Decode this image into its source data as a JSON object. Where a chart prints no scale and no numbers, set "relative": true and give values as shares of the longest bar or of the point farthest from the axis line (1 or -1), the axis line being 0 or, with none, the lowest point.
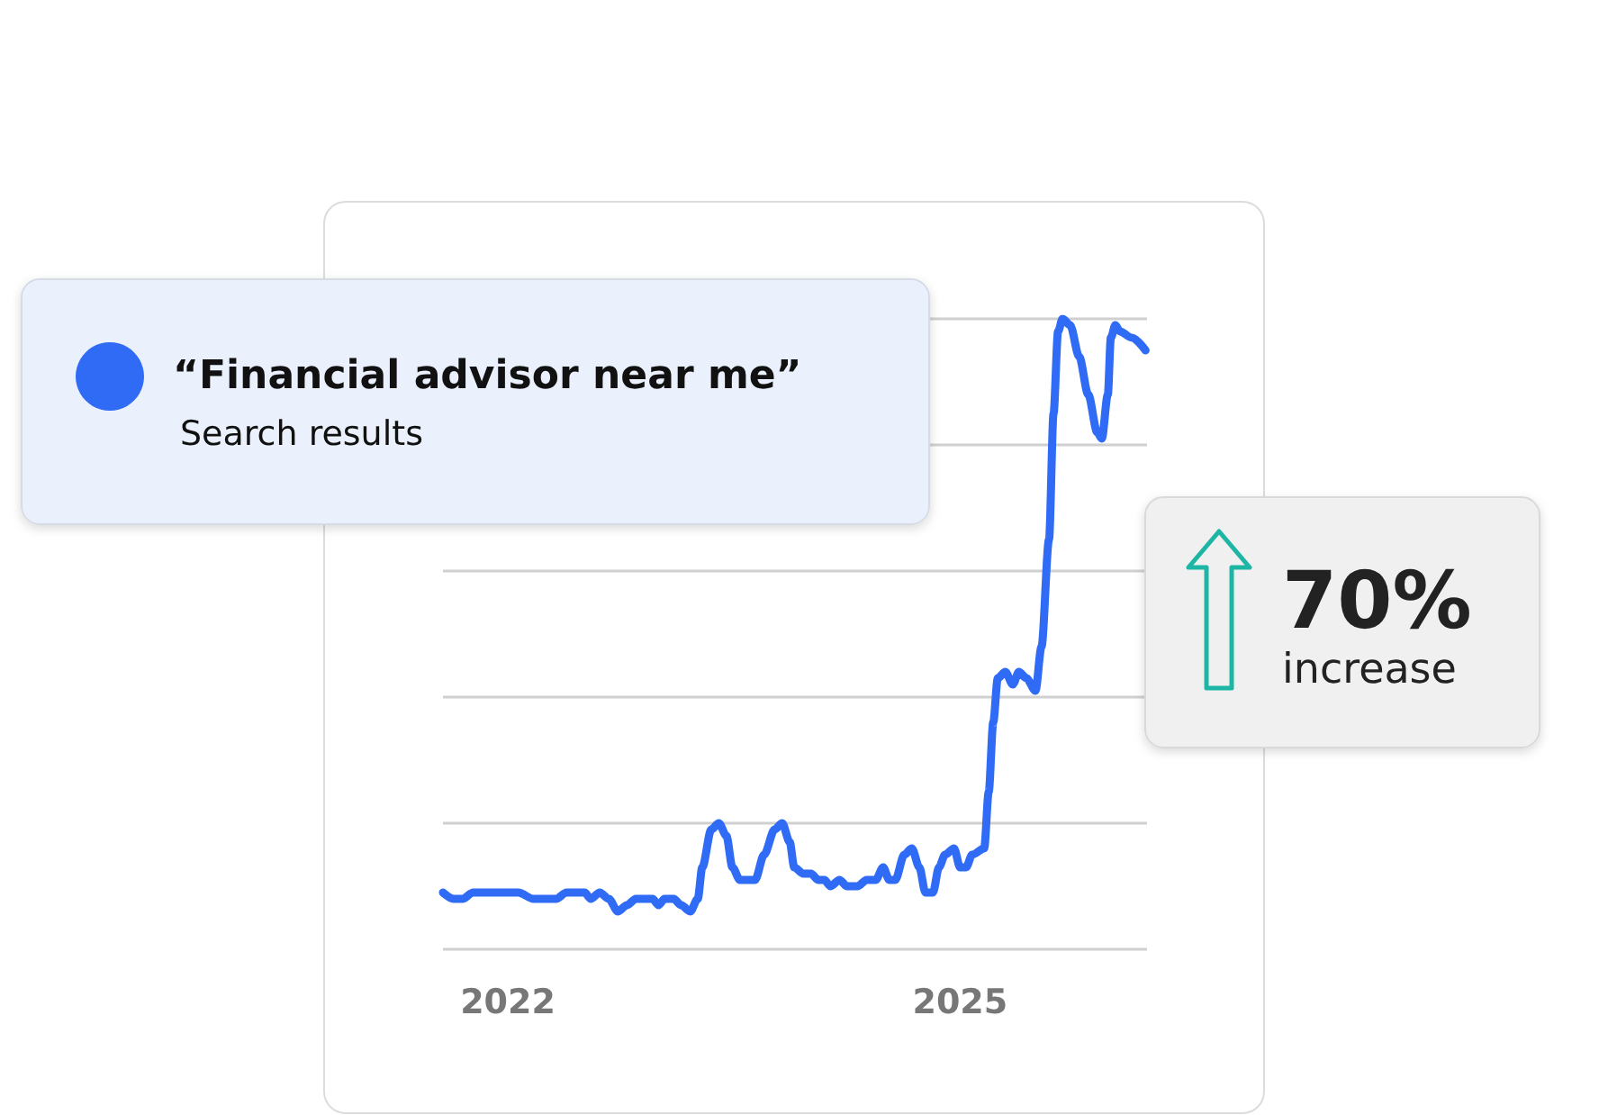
{
  "chart_data": {
    "type": "line",
    "relative": true,
    "legend": "top left",
    "grid": "y",
    "marker": "none",
    "line_style": "solid",
    "xlim": [
      2021.57,
      2026.24
    ],
    "xticks": [
      2022,
      2025
    ],
    "annotations": [
      "Search results",
      "70%",
      "increase"
    ],
    "series": [
      {
        "name": "“Financial advisor near me”",
        "color": "#2f6bf5",
        "x": [
          2021.57,
          2021.64,
          2021.7,
          2021.77,
          2021.88,
          2021.98,
          2022.07,
          2022.17,
          2022.25,
          2022.32,
          2022.39,
          2022.45,
          2022.51,
          2022.55,
          2022.61,
          2022.67,
          2022.73,
          2022.79,
          2022.85,
          2022.91,
          2022.96,
          2023.0,
          2023.04,
          2023.1,
          2023.15,
          2023.21,
          2023.26,
          2023.29,
          2023.35,
          2023.4,
          2023.45,
          2023.49,
          2023.54,
          2023.59,
          2023.64,
          2023.7,
          2023.77,
          2023.82,
          2023.87,
          2023.9,
          2023.96,
          2024.01,
          2024.06,
          2024.1,
          2024.14,
          2024.2,
          2024.25,
          2024.32,
          2024.38,
          2024.44,
          2024.49,
          2024.53,
          2024.57,
          2024.63,
          2024.68,
          2024.73,
          2024.77,
          2024.82,
          2024.86,
          2024.9,
          2024.96,
          2025.0,
          2025.04,
          2025.08,
          2025.16,
          2025.19,
          2025.22,
          2025.25,
          2025.3,
          2025.35,
          2025.39,
          2025.44,
          2025.5,
          2025.54,
          2025.59,
          2025.62,
          2025.65,
          2025.68,
          2025.73,
          2025.79,
          2025.85,
          2025.91,
          2025.94,
          2025.98,
          2026.0,
          2026.03,
          2026.06,
          2026.14,
          2026.23
        ],
        "values": [
          0.09,
          0.08,
          0.08,
          0.09,
          0.09,
          0.09,
          0.09,
          0.08,
          0.08,
          0.08,
          0.09,
          0.09,
          0.09,
          0.08,
          0.09,
          0.08,
          0.06,
          0.07,
          0.08,
          0.08,
          0.08,
          0.07,
          0.08,
          0.08,
          0.07,
          0.06,
          0.08,
          0.13,
          0.19,
          0.2,
          0.18,
          0.13,
          0.11,
          0.11,
          0.11,
          0.15,
          0.19,
          0.2,
          0.17,
          0.13,
          0.12,
          0.12,
          0.11,
          0.11,
          0.1,
          0.11,
          0.1,
          0.1,
          0.11,
          0.11,
          0.13,
          0.11,
          0.11,
          0.15,
          0.16,
          0.13,
          0.09,
          0.09,
          0.13,
          0.15,
          0.16,
          0.13,
          0.13,
          0.15,
          0.16,
          0.25,
          0.36,
          0.43,
          0.44,
          0.42,
          0.44,
          0.43,
          0.41,
          0.48,
          0.65,
          0.85,
          0.98,
          1,
          0.99,
          0.94,
          0.88,
          0.82,
          0.81,
          0.88,
          0.97,
          0.99,
          0.98,
          0.97,
          0.95
        ]
      }
    ]
  }
}
